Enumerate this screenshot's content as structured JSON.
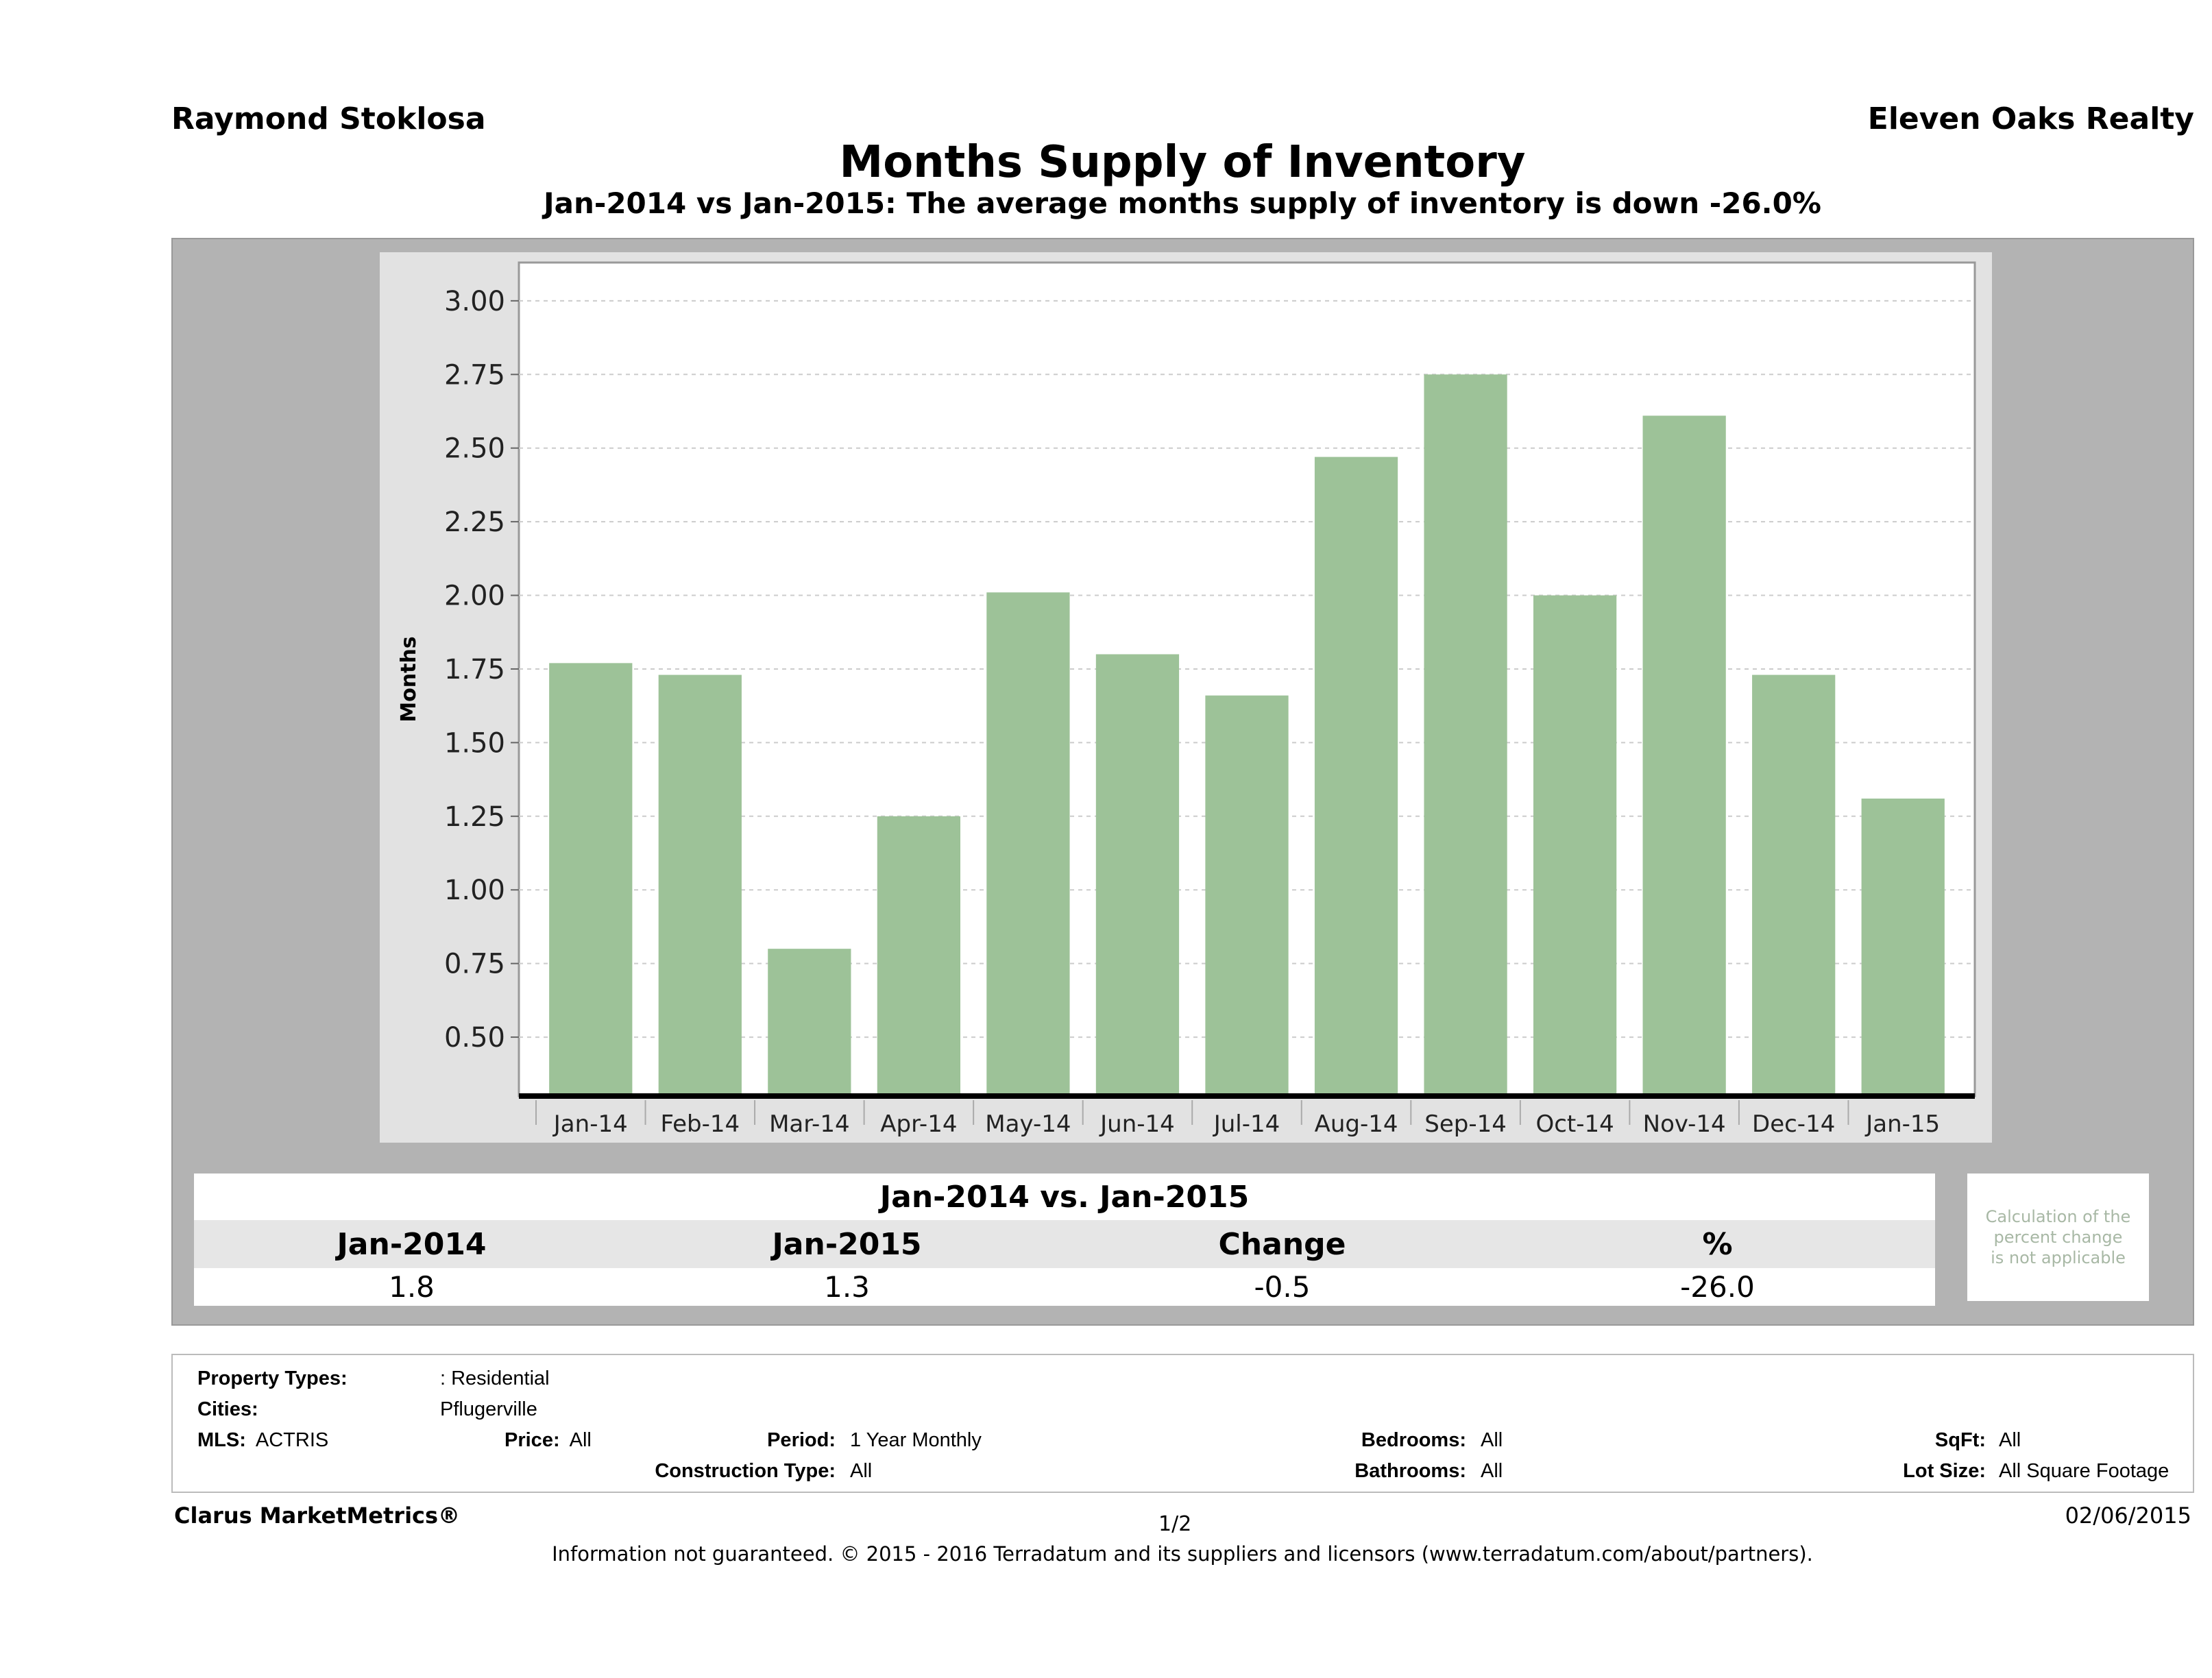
{
  "header": {
    "agent": "Raymond Stoklosa",
    "company": "Eleven Oaks Realty",
    "title": "Months Supply of Inventory",
    "subtitle": "Jan-2014 vs Jan-2015: The average months supply of inventory is down -26.0%"
  },
  "chart_data": {
    "type": "bar",
    "ylabel": "Months",
    "xlabel": "",
    "categories": [
      "Jan-14",
      "Feb-14",
      "Mar-14",
      "Apr-14",
      "May-14",
      "Jun-14",
      "Jul-14",
      "Aug-14",
      "Sep-14",
      "Oct-14",
      "Nov-14",
      "Dec-14",
      "Jan-15"
    ],
    "values": [
      1.77,
      1.73,
      0.8,
      1.25,
      2.01,
      1.8,
      1.66,
      2.47,
      2.75,
      2.0,
      2.61,
      1.73,
      1.31
    ],
    "yticks": [
      "0.50",
      "0.75",
      "1.00",
      "1.25",
      "1.50",
      "1.75",
      "2.00",
      "2.25",
      "2.50",
      "2.75",
      "3.00"
    ],
    "ylim": [
      0.3,
      3.13
    ],
    "grid": true,
    "bar_color": "#9dc298"
  },
  "comparison": {
    "title": "Jan-2014 vs. Jan-2015",
    "headers": [
      "Jan-2014",
      "Jan-2015",
      "Change",
      "%"
    ],
    "values": [
      "1.8",
      "1.3",
      "-0.5",
      "-26.0"
    ],
    "note": [
      "Calculation of the",
      "percent change",
      "is not applicable"
    ]
  },
  "filters": {
    "property_types_label": "Property Types:",
    "property_types": ": Residential",
    "cities_label": "Cities:",
    "cities": "Pflugerville",
    "mls_label": "MLS:",
    "mls": "ACTRIS",
    "price_label": "Price:",
    "price": "All",
    "period_label": "Period:",
    "period": "1 Year Monthly",
    "construction_label": "Construction Type:",
    "construction": "All",
    "bedrooms_label": "Bedrooms:",
    "bedrooms": "All",
    "bathrooms_label": "Bathrooms:",
    "bathrooms": "All",
    "sqft_label": "SqFt:",
    "sqft": "All",
    "lot_label": "Lot Size:",
    "lot": "All Square Footage"
  },
  "footer": {
    "brand": "Clarus MarketMetrics®",
    "page": "1/2",
    "date": "02/06/2015",
    "disclaimer": "Information not guaranteed. © 2015 - 2016 Terradatum and its suppliers and licensors (www.terradatum.com/about/partners)."
  }
}
